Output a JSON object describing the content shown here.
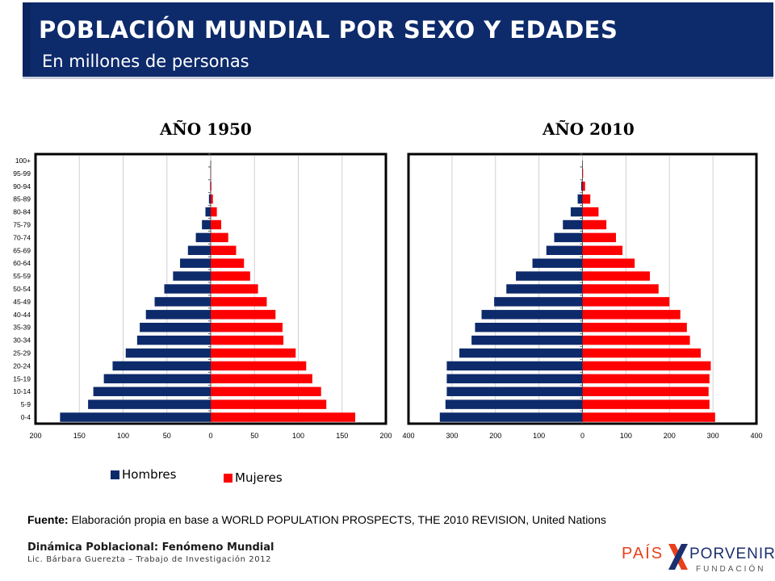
{
  "header": {
    "title": "POBLACIÓN MUNDIAL POR SEXO Y EDADES",
    "subtitle": "En millones de personas"
  },
  "legend": {
    "hombres": "Hombres",
    "mujeres": "Mujeres"
  },
  "colors": {
    "header": "#0d2a6b",
    "hombres": "#0d2a6b",
    "mujeres": "#ff0000"
  },
  "chart_data": [
    {
      "type": "bar",
      "orientation": "horizontal",
      "title": "AÑO 1950",
      "categories": [
        "0-4",
        "5-9",
        "10-14",
        "15-19",
        "20-24",
        "25-29",
        "30-34",
        "35-39",
        "40-44",
        "45-49",
        "50-54",
        "55-59",
        "60-64",
        "65-69",
        "70-74",
        "75-79",
        "80-84",
        "85-89",
        "90-94",
        "95-99",
        "100+"
      ],
      "series": [
        {
          "name": "Hombres",
          "values": [
            172,
            140,
            134,
            122,
            112,
            97,
            84,
            81,
            74,
            64,
            53,
            43,
            35,
            26,
            17,
            10,
            6,
            2,
            0.6,
            0.1,
            0
          ]
        },
        {
          "name": "Mujeres",
          "values": [
            165,
            132,
            126,
            116,
            109,
            97,
            83,
            82,
            74,
            64,
            54,
            45,
            38,
            29,
            20,
            12,
            7,
            2.5,
            0.8,
            0.2,
            0
          ]
        }
      ],
      "xlim": [
        -200,
        200
      ],
      "xticks": [
        "200",
        "150",
        "100",
        "50",
        "0",
        "50",
        "100",
        "150",
        "200"
      ],
      "grid": true
    },
    {
      "type": "bar",
      "orientation": "horizontal",
      "title": "AÑO 2010",
      "categories": [
        "0-4",
        "5-9",
        "10-14",
        "15-19",
        "20-24",
        "25-29",
        "30-34",
        "35-39",
        "40-44",
        "45-49",
        "50-54",
        "55-59",
        "60-64",
        "65-69",
        "70-74",
        "75-79",
        "80-84",
        "85-89",
        "90-94",
        "95-99",
        "100+"
      ],
      "series": [
        {
          "name": "Hombres",
          "values": [
            328,
            315,
            312,
            312,
            312,
            283,
            255,
            247,
            232,
            203,
            175,
            153,
            115,
            83,
            65,
            45,
            27,
            11,
            3,
            0.5,
            0
          ]
        },
        {
          "name": "Mujeres",
          "values": [
            305,
            292,
            290,
            292,
            295,
            272,
            247,
            240,
            225,
            200,
            175,
            155,
            120,
            92,
            77,
            55,
            37,
            18,
            6,
            1.5,
            0
          ]
        }
      ],
      "xlim": [
        -400,
        400
      ],
      "xticks": [
        "400",
        "300",
        "200",
        "100",
        "0",
        "100",
        "200",
        "300",
        "400"
      ],
      "grid": true
    }
  ],
  "source": {
    "label": "Fuente:",
    "text": " Elaboración propia en base a  WORLD POPULATION PROSPECTS, THE 2010 REVISION, United Nations"
  },
  "footer": {
    "line1": "Dinámica Poblacional: Fenómeno Mundial",
    "line2": "Lic. Bárbara Guerezta – Trabajo de Investigación 2012"
  },
  "logo": {
    "pais": "PAÍS",
    "porvenir": "PORVENIR",
    "fundacion": "FUNDACIÓN"
  }
}
